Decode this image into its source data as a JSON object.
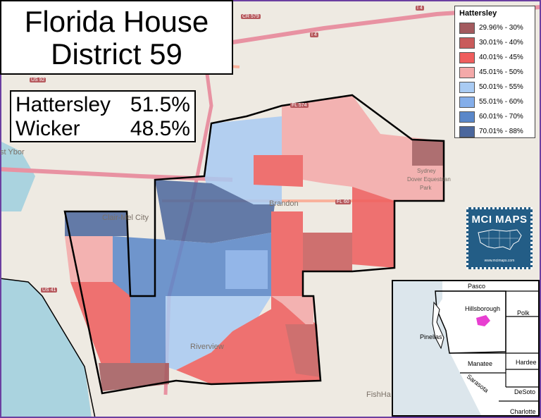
{
  "title": {
    "line1": "Florida House",
    "line2": "District 59"
  },
  "results": [
    {
      "name": "Hattersley",
      "pct": "51.5%"
    },
    {
      "name": "Wicker",
      "pct": "48.5%"
    }
  ],
  "legend": {
    "title": "Hattersley",
    "items": [
      {
        "label": "29.96% - 30%",
        "color": "#a35a5e"
      },
      {
        "label": "30.01% - 40%",
        "color": "#c95b5b"
      },
      {
        "label": "40.01% - 45%",
        "color": "#ef5d5d"
      },
      {
        "label": "45.01% - 50%",
        "color": "#f4a9a9"
      },
      {
        "label": "50.01% - 55%",
        "color": "#a9cbf3"
      },
      {
        "label": "55.01% - 60%",
        "color": "#84aeea"
      },
      {
        "label": "60.01% - 70%",
        "color": "#5a87c9"
      },
      {
        "label": "70.01% - 88%",
        "color": "#4b679d"
      }
    ]
  },
  "logo": {
    "text": "MCI MAPS",
    "url": "www.mcimaps.com"
  },
  "map_labels": {
    "brandon": "Brandon",
    "clair_mel": "Clair-Mel City",
    "riverview": "Riverview",
    "sydney": "Sydney",
    "dover": "Dover Equestrian",
    "park": "Park",
    "fishhawk": "FishHa",
    "ybor": "st Ybor"
  },
  "road_labels": [
    "I 4",
    "I 4",
    "CR 579",
    "US 92",
    "FL 574",
    "FL 60",
    "US 41"
  ],
  "inset_counties": [
    "Pasco",
    "Hillsborough",
    "Polk",
    "Pinellas",
    "Manatee",
    "Hardee",
    "Sarasota",
    "DeSoto",
    "Charlotte"
  ],
  "highlight_color": "#e83fd1"
}
